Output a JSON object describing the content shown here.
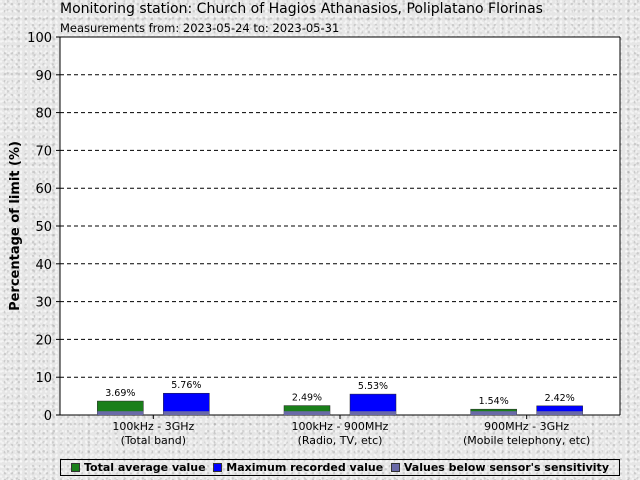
{
  "header": {
    "title": "Monitoring station: Church of Hagios Athanasios, Poliplatano Florinas",
    "subtitle": "Measurements from: 2023-05-24 to: 2023-05-31"
  },
  "colors": {
    "total_average": "#1a7f1a",
    "maximum": "#0000ff",
    "below_sensitivity": "#6a6aa8"
  },
  "chart_data": {
    "type": "bar",
    "ylabel": "Percentage of limit (%)",
    "ylim": [
      0,
      100
    ],
    "yticks": [
      "0",
      "10",
      "20",
      "30",
      "40",
      "50",
      "60",
      "70",
      "80",
      "90",
      "100"
    ],
    "grid": true,
    "legend_position": "bottom",
    "categories": [
      {
        "line1": "100kHz - 3GHz",
        "line2": "(Total band)"
      },
      {
        "line1": "100kHz - 900MHz",
        "line2": "(Radio, TV, etc)"
      },
      {
        "line1": "900MHz - 3GHz",
        "line2": "(Mobile telephony, etc)"
      }
    ],
    "series": [
      {
        "name": "Total average value",
        "values": [
          3.69,
          2.49,
          1.54
        ],
        "labels": [
          "3.69%",
          "2.49%",
          "1.54%"
        ]
      },
      {
        "name": "Maximum recorded value",
        "values": [
          5.76,
          5.53,
          2.42
        ],
        "labels": [
          "5.76%",
          "5.53%",
          "2.42%"
        ]
      },
      {
        "name": "Values below sensor's sensitivity",
        "values": [
          1,
          1,
          1
        ]
      }
    ]
  }
}
